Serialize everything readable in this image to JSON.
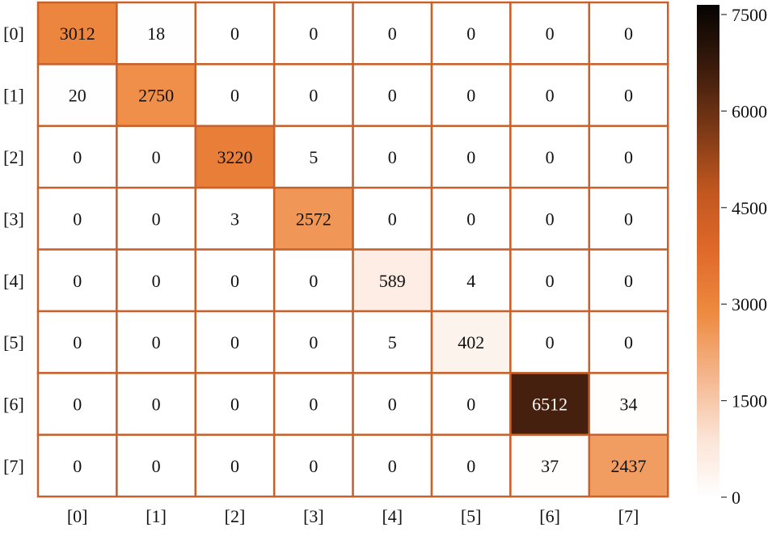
{
  "chart_data": {
    "type": "heatmap",
    "title": "",
    "xlabel": "",
    "ylabel": "",
    "x_tick_labels": [
      "[0]",
      "[1]",
      "[2]",
      "[3]",
      "[4]",
      "[5]",
      "[6]",
      "[7]"
    ],
    "y_tick_labels": [
      "[0]",
      "[1]",
      "[2]",
      "[3]",
      "[4]",
      "[5]",
      "[6]",
      "[7]"
    ],
    "matrix": [
      [
        3012,
        18,
        0,
        0,
        0,
        0,
        0,
        0
      ],
      [
        20,
        2750,
        0,
        0,
        0,
        0,
        0,
        0
      ],
      [
        0,
        0,
        3220,
        5,
        0,
        0,
        0,
        0
      ],
      [
        0,
        0,
        3,
        2572,
        0,
        0,
        0,
        0
      ],
      [
        0,
        0,
        0,
        0,
        589,
        4,
        0,
        0
      ],
      [
        0,
        0,
        0,
        0,
        5,
        402,
        0,
        0
      ],
      [
        0,
        0,
        0,
        0,
        0,
        0,
        6512,
        34
      ],
      [
        0,
        0,
        0,
        0,
        0,
        0,
        37,
        2437
      ]
    ],
    "colorbar": {
      "range": [
        0,
        7650
      ],
      "ticks": [
        0,
        1500,
        3000,
        4500,
        6000,
        7500
      ],
      "tick_labels": [
        "0",
        "1500",
        "3000",
        "4500",
        "6000",
        "7500"
      ],
      "colormap": [
        "#ffffff",
        "#fbe2d3",
        "#f4b48a",
        "#ee8a40",
        "#e0692a",
        "#c0561f",
        "#7a3816",
        "#3a1a0c",
        "#050302"
      ]
    },
    "cell_border_color": "#c8622c",
    "annotations": true,
    "grid": false
  }
}
